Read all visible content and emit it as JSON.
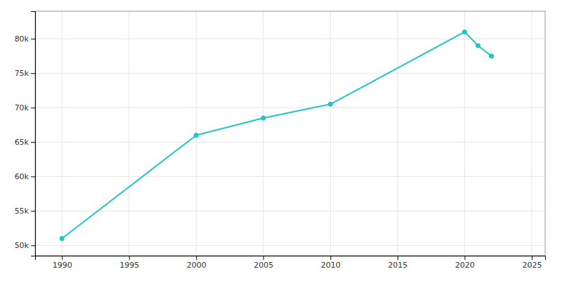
{
  "chart_data": {
    "type": "line",
    "x": [
      1990,
      2000,
      2005,
      2010,
      2020,
      2021,
      2022
    ],
    "values": [
      51000,
      66000,
      68500,
      70500,
      81000,
      79000,
      77500
    ],
    "color": "#22c5c5",
    "marker": "circle",
    "xlim": [
      1988,
      2026
    ],
    "ylim": [
      48500,
      84000
    ],
    "xticks": [
      1990,
      1995,
      2000,
      2005,
      2010,
      2015,
      2020,
      2025
    ],
    "yticks": [
      {
        "value": 50000,
        "label": "50k"
      },
      {
        "value": 55000,
        "label": "55k"
      },
      {
        "value": 60000,
        "label": "60k"
      },
      {
        "value": 65000,
        "label": "65k"
      },
      {
        "value": 70000,
        "label": "70k"
      },
      {
        "value": 75000,
        "label": "75k"
      },
      {
        "value": 80000,
        "label": "80k"
      }
    ],
    "grid": true
  }
}
